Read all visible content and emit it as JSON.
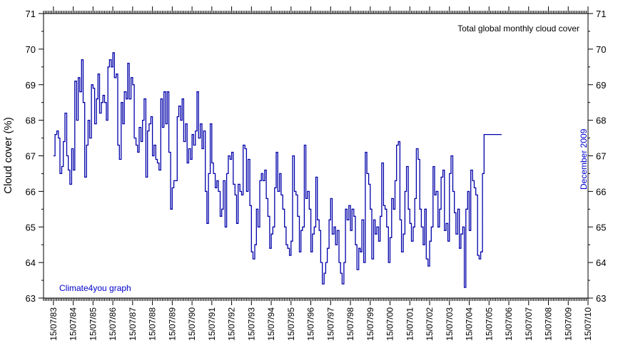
{
  "chart_data": {
    "type": "line",
    "step": true,
    "title": "Total global monthly cloud cover",
    "ylabel": "Cloud cover (%)",
    "xlabel": "",
    "ylim": [
      63,
      71
    ],
    "xlim_years": [
      1983.0,
      2010.5
    ],
    "grid": false,
    "y_ticks": [
      63,
      64,
      65,
      66,
      67,
      68,
      69,
      70,
      71
    ],
    "y_tick_labels": [
      "63",
      "64",
      "65",
      "66",
      "67",
      "68",
      "69",
      "70",
      "71"
    ],
    "x_tick_labels": [
      "15/07/83",
      "15/07/84",
      "15/07/85",
      "15/07/86",
      "15/07/87",
      "15/07/88",
      "15/07/89",
      "15/07/90",
      "15/07/91",
      "15/07/92",
      "15/07/93",
      "15/07/94",
      "15/07/95",
      "15/07/96",
      "15/07/97",
      "15/07/98",
      "15/07/99",
      "15/07/00",
      "15/07/01",
      "15/07/02",
      "15/07/03",
      "15/07/04",
      "15/07/05",
      "15/07/06",
      "15/07/07",
      "15/07/08",
      "15/07/09",
      "15/07/10"
    ],
    "annotations": {
      "credit": "Climate4you graph",
      "end_label": "December 2009"
    },
    "line_color": "#0000aa",
    "series": [
      {
        "name": "",
        "anchors": [
          [
            1983.5,
            67.0
          ],
          [
            1983.58,
            67.6
          ],
          [
            1983.67,
            67.7
          ],
          [
            1983.75,
            67.5
          ],
          [
            1983.83,
            66.5
          ],
          [
            1983.92,
            66.7
          ],
          [
            1984.0,
            67.4
          ],
          [
            1984.08,
            68.2
          ],
          [
            1984.17,
            67.0
          ],
          [
            1984.25,
            66.6
          ],
          [
            1984.33,
            66.2
          ],
          [
            1984.42,
            67.2
          ],
          [
            1984.5,
            66.6
          ],
          [
            1984.58,
            69.1
          ],
          [
            1984.67,
            68.0
          ],
          [
            1984.75,
            69.2
          ],
          [
            1984.83,
            68.8
          ],
          [
            1984.92,
            69.7
          ],
          [
            1985.0,
            68.5
          ],
          [
            1985.08,
            66.4
          ],
          [
            1985.17,
            67.3
          ],
          [
            1985.25,
            68.0
          ],
          [
            1985.33,
            67.5
          ],
          [
            1985.42,
            69.0
          ],
          [
            1985.5,
            68.9
          ],
          [
            1985.58,
            67.9
          ],
          [
            1985.67,
            68.6
          ],
          [
            1985.75,
            69.3
          ],
          [
            1985.83,
            68.2
          ],
          [
            1985.92,
            68.5
          ],
          [
            1986.0,
            68.7
          ],
          [
            1986.08,
            68.5
          ],
          [
            1986.17,
            68.0
          ],
          [
            1986.25,
            69.5
          ],
          [
            1986.33,
            69.7
          ],
          [
            1986.42,
            69.5
          ],
          [
            1986.5,
            69.9
          ],
          [
            1986.58,
            69.2
          ],
          [
            1986.67,
            69.3
          ],
          [
            1986.75,
            67.3
          ],
          [
            1986.83,
            66.9
          ],
          [
            1986.92,
            68.5
          ],
          [
            1987.0,
            67.9
          ],
          [
            1987.08,
            68.8
          ],
          [
            1987.17,
            68.6
          ],
          [
            1987.25,
            69.6
          ],
          [
            1987.33,
            68.6
          ],
          [
            1987.42,
            69.2
          ],
          [
            1987.5,
            69.0
          ],
          [
            1987.58,
            67.5
          ],
          [
            1987.67,
            67.3
          ],
          [
            1987.75,
            67.1
          ],
          [
            1987.83,
            67.8
          ],
          [
            1987.92,
            67.4
          ],
          [
            1988.0,
            68.0
          ],
          [
            1988.08,
            68.6
          ],
          [
            1988.17,
            66.4
          ],
          [
            1988.25,
            67.7
          ],
          [
            1988.33,
            67.9
          ],
          [
            1988.42,
            68.1
          ],
          [
            1988.5,
            67.0
          ],
          [
            1988.58,
            67.3
          ],
          [
            1988.67,
            66.9
          ],
          [
            1988.75,
            66.8
          ],
          [
            1988.83,
            66.6
          ],
          [
            1988.92,
            68.6
          ],
          [
            1989.0,
            67.8
          ],
          [
            1989.08,
            68.8
          ],
          [
            1989.17,
            67.9
          ],
          [
            1989.25,
            68.8
          ],
          [
            1989.33,
            67.1
          ],
          [
            1989.42,
            65.5
          ],
          [
            1989.5,
            66.1
          ],
          [
            1989.58,
            66.3
          ],
          [
            1989.67,
            66.3
          ],
          [
            1989.75,
            68.1
          ],
          [
            1989.83,
            68.4
          ],
          [
            1989.92,
            68.0
          ],
          [
            1990.0,
            68.6
          ],
          [
            1990.08,
            67.4
          ],
          [
            1990.17,
            67.9
          ],
          [
            1990.25,
            66.8
          ],
          [
            1990.33,
            67.2
          ],
          [
            1990.42,
            66.9
          ],
          [
            1990.5,
            67.6
          ],
          [
            1990.58,
            67.3
          ],
          [
            1990.67,
            67.7
          ],
          [
            1990.75,
            68.8
          ],
          [
            1990.83,
            67.5
          ],
          [
            1990.92,
            67.9
          ],
          [
            1991.0,
            67.2
          ],
          [
            1991.08,
            67.7
          ],
          [
            1991.17,
            66.0
          ],
          [
            1991.25,
            65.1
          ],
          [
            1991.33,
            66.5
          ],
          [
            1991.42,
            67.9
          ],
          [
            1991.5,
            66.8
          ],
          [
            1991.58,
            66.5
          ],
          [
            1991.67,
            66.1
          ],
          [
            1991.75,
            66.3
          ],
          [
            1991.83,
            66.0
          ],
          [
            1991.92,
            65.3
          ],
          [
            1992.0,
            65.5
          ],
          [
            1992.08,
            66.3
          ],
          [
            1992.17,
            65.0
          ],
          [
            1992.25,
            66.5
          ],
          [
            1992.33,
            67.0
          ],
          [
            1992.42,
            66.9
          ],
          [
            1992.5,
            67.1
          ],
          [
            1992.58,
            66.2
          ],
          [
            1992.67,
            65.9
          ],
          [
            1992.75,
            65.1
          ],
          [
            1992.83,
            66.2
          ],
          [
            1992.92,
            66.0
          ],
          [
            1993.0,
            65.9
          ],
          [
            1993.08,
            67.3
          ],
          [
            1993.17,
            67.2
          ],
          [
            1993.25,
            66.0
          ],
          [
            1993.33,
            66.9
          ],
          [
            1993.42,
            65.6
          ],
          [
            1993.5,
            64.3
          ],
          [
            1993.58,
            64.1
          ],
          [
            1993.67,
            64.5
          ],
          [
            1993.75,
            65.5
          ],
          [
            1993.83,
            65.0
          ],
          [
            1993.92,
            66.3
          ],
          [
            1994.0,
            66.5
          ],
          [
            1994.08,
            66.3
          ],
          [
            1994.17,
            66.6
          ],
          [
            1994.25,
            65.8
          ],
          [
            1994.33,
            65.3
          ],
          [
            1994.42,
            64.4
          ],
          [
            1994.5,
            64.8
          ],
          [
            1994.58,
            65.0
          ],
          [
            1994.67,
            66.1
          ],
          [
            1994.75,
            67.1
          ],
          [
            1994.83,
            66.0
          ],
          [
            1994.92,
            66.5
          ],
          [
            1995.0,
            65.9
          ],
          [
            1995.08,
            65.5
          ],
          [
            1995.17,
            65.0
          ],
          [
            1995.25,
            64.5
          ],
          [
            1995.33,
            64.4
          ],
          [
            1995.42,
            64.2
          ],
          [
            1995.5,
            64.6
          ],
          [
            1995.58,
            67.0
          ],
          [
            1995.67,
            66.0
          ],
          [
            1995.75,
            65.9
          ],
          [
            1995.83,
            65.3
          ],
          [
            1995.92,
            64.3
          ],
          [
            1996.0,
            64.9
          ],
          [
            1996.08,
            65.0
          ],
          [
            1996.17,
            67.3
          ],
          [
            1996.25,
            65.8
          ],
          [
            1996.33,
            66.0
          ],
          [
            1996.42,
            65.5
          ],
          [
            1996.5,
            64.3
          ],
          [
            1996.58,
            64.8
          ],
          [
            1996.67,
            65.0
          ],
          [
            1996.75,
            66.4
          ],
          [
            1996.83,
            65.2
          ],
          [
            1996.92,
            64.9
          ],
          [
            1997.0,
            64.0
          ],
          [
            1997.08,
            63.4
          ],
          [
            1997.17,
            63.7
          ],
          [
            1997.25,
            64.0
          ],
          [
            1997.33,
            64.4
          ],
          [
            1997.42,
            65.2
          ],
          [
            1997.5,
            65.8
          ],
          [
            1997.58,
            64.8
          ],
          [
            1997.67,
            65.0
          ],
          [
            1997.75,
            64.5
          ],
          [
            1997.83,
            64.9
          ],
          [
            1997.92,
            64.0
          ],
          [
            1998.0,
            63.7
          ],
          [
            1998.08,
            63.4
          ],
          [
            1998.17,
            64.0
          ],
          [
            1998.25,
            65.5
          ],
          [
            1998.33,
            65.2
          ],
          [
            1998.42,
            65.6
          ],
          [
            1998.5,
            64.9
          ],
          [
            1998.58,
            65.5
          ],
          [
            1998.67,
            65.3
          ],
          [
            1998.75,
            64.5
          ],
          [
            1998.83,
            63.8
          ],
          [
            1998.92,
            64.4
          ],
          [
            1999.0,
            64.3
          ],
          [
            1999.08,
            65.2
          ],
          [
            1999.17,
            64.0
          ],
          [
            1999.25,
            67.1
          ],
          [
            1999.33,
            66.5
          ],
          [
            1999.42,
            66.2
          ],
          [
            1999.5,
            65.5
          ],
          [
            1999.58,
            64.1
          ],
          [
            1999.67,
            65.2
          ],
          [
            1999.75,
            64.8
          ],
          [
            1999.83,
            65.0
          ],
          [
            1999.92,
            64.6
          ],
          [
            2000.0,
            65.3
          ],
          [
            2000.08,
            66.8
          ],
          [
            2000.17,
            65.6
          ],
          [
            2000.25,
            65.5
          ],
          [
            2000.33,
            65.0
          ],
          [
            2000.42,
            64.0
          ],
          [
            2000.5,
            64.7
          ],
          [
            2000.58,
            65.8
          ],
          [
            2000.67,
            65.5
          ],
          [
            2000.75,
            66.3
          ],
          [
            2000.83,
            67.3
          ],
          [
            2000.92,
            67.4
          ],
          [
            2001.0,
            65.2
          ],
          [
            2001.08,
            64.3
          ],
          [
            2001.17,
            64.8
          ],
          [
            2001.25,
            66.0
          ],
          [
            2001.33,
            66.7
          ],
          [
            2001.42,
            65.5
          ],
          [
            2001.5,
            65.1
          ],
          [
            2001.58,
            64.6
          ],
          [
            2001.67,
            65.0
          ],
          [
            2001.75,
            65.8
          ],
          [
            2001.83,
            67.2
          ],
          [
            2001.92,
            66.9
          ],
          [
            2002.0,
            65.5
          ],
          [
            2002.08,
            65.0
          ],
          [
            2002.17,
            64.5
          ],
          [
            2002.25,
            65.5
          ],
          [
            2002.33,
            64.1
          ],
          [
            2002.42,
            63.9
          ],
          [
            2002.5,
            64.6
          ],
          [
            2002.58,
            65.0
          ],
          [
            2002.67,
            66.7
          ],
          [
            2002.75,
            65.9
          ],
          [
            2002.83,
            66.0
          ],
          [
            2002.92,
            65.0
          ],
          [
            2003.0,
            65.5
          ],
          [
            2003.08,
            66.4
          ],
          [
            2003.17,
            66.6
          ],
          [
            2003.25,
            64.9
          ],
          [
            2003.33,
            65.1
          ],
          [
            2003.42,
            64.6
          ],
          [
            2003.5,
            66.5
          ],
          [
            2003.58,
            67.0
          ],
          [
            2003.67,
            66.0
          ],
          [
            2003.75,
            65.4
          ],
          [
            2003.83,
            64.8
          ],
          [
            2003.92,
            65.5
          ],
          [
            2004.0,
            64.4
          ],
          [
            2004.08,
            64.8
          ],
          [
            2004.17,
            65.0
          ],
          [
            2004.25,
            63.3
          ],
          [
            2004.33,
            65.5
          ],
          [
            2004.42,
            66.0
          ],
          [
            2004.5,
            64.9
          ],
          [
            2004.58,
            66.6
          ],
          [
            2004.67,
            66.3
          ],
          [
            2004.75,
            66.1
          ],
          [
            2004.83,
            65.9
          ],
          [
            2004.92,
            64.2
          ],
          [
            2005.0,
            64.1
          ],
          [
            2005.08,
            64.3
          ],
          [
            2005.17,
            66.5
          ],
          [
            2005.25,
            67.6
          ],
          [
            2005.33,
            67.6
          ],
          [
            2005.42,
            67.6
          ],
          [
            2005.5,
            67.6
          ],
          [
            2005.58,
            67.6
          ],
          [
            2005.67,
            67.6
          ],
          [
            2005.75,
            67.6
          ],
          [
            2005.83,
            67.6
          ],
          [
            2005.92,
            67.6
          ]
        ]
      }
    ]
  }
}
